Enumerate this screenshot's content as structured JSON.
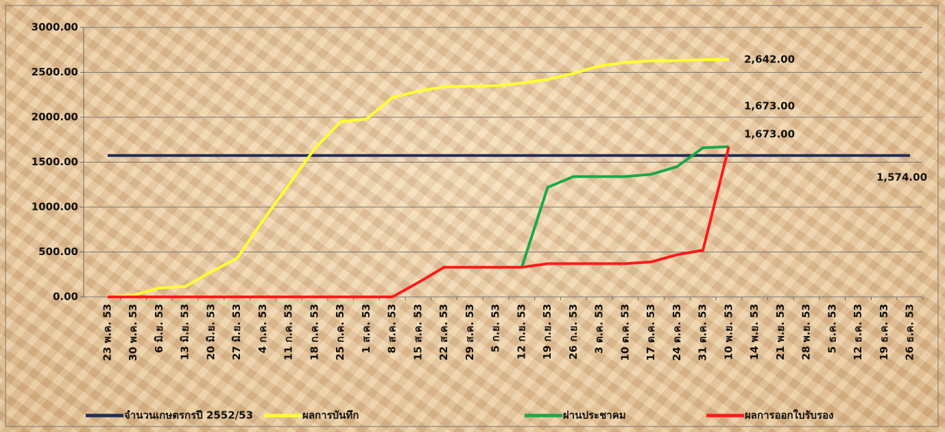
{
  "chart_data": {
    "type": "line",
    "categories": [
      "23 พ.ค. 53",
      "30 พ.ค. 53",
      "6 มิ.ย. 53",
      "13 มิ.ย. 53",
      "20 มิ.ย. 53",
      "27 มิ.ย. 53",
      "4 ก.ค. 53",
      "11 ก.ค. 53",
      "18 ก.ค. 53",
      "25 ก.ค. 53",
      "1 ส.ค. 53",
      "8 ส.ค. 53",
      "15 ส.ค. 53",
      "22 ส.ค. 53",
      "29 ส.ค. 53",
      "5 ก.ย. 53",
      "12 ก.ย. 53",
      "19 ก.ย. 53",
      "26 ก.ย. 53",
      "3 ต.ค. 53",
      "10 ต.ค. 53",
      "17 ต.ค. 53",
      "24 ต.ค. 53",
      "31 ต.ค. 53",
      "10 พ.ย. 53",
      "14 พ.ย. 53",
      "21 พ.ย. 53",
      "28 พ.ย. 53",
      "5 ธ.ค. 53",
      "12 ธ.ค. 53",
      "19 ธ.ค. 53",
      "26 ธ.ค. 53"
    ],
    "series": [
      {
        "name": "จำนวนเกษตรกรปี  2552/53",
        "color": "#1f2d5a",
        "label_color": "#1f2d5a",
        "values": [
          1574,
          1574,
          1574,
          1574,
          1574,
          1574,
          1574,
          1574,
          1574,
          1574,
          1574,
          1574,
          1574,
          1574,
          1574,
          1574,
          1574,
          1574,
          1574,
          1574,
          1574,
          1574,
          1574,
          1574,
          1574,
          1574,
          1574,
          1574,
          1574,
          1574,
          1574,
          1574
        ],
        "value_labels": [
          null,
          null,
          null,
          null,
          null,
          null,
          null,
          null,
          null,
          null,
          null,
          null,
          null,
          null,
          null,
          null,
          null,
          null,
          null,
          null,
          null,
          null,
          null,
          null,
          null,
          null,
          null,
          null,
          null,
          null,
          null,
          "1,574.00"
        ]
      },
      {
        "name": "ผลการบันทึก",
        "color": "#ffff33",
        "label_color": "#222222",
        "values": [
          0,
          20,
          100,
          115,
          280,
          430,
          850,
          1250,
          1650,
          1950,
          1980,
          2220,
          2290,
          2340,
          2345,
          2350,
          2380,
          2420,
          2490,
          2570,
          2610,
          2630,
          2630,
          2640,
          2642,
          null,
          null,
          null,
          null,
          null,
          null,
          null
        ],
        "value_labels": [
          null,
          null,
          null,
          null,
          null,
          null,
          null,
          null,
          null,
          null,
          null,
          null,
          null,
          null,
          null,
          null,
          null,
          null,
          null,
          null,
          null,
          null,
          null,
          null,
          "2,642.00",
          null,
          null,
          null,
          null,
          null,
          null,
          null
        ]
      },
      {
        "name": "ผ่านประชาคม",
        "color": "#1aa84a",
        "label_color": "#1aa84a",
        "values": [
          null,
          null,
          null,
          null,
          null,
          null,
          null,
          null,
          null,
          null,
          null,
          null,
          null,
          null,
          null,
          null,
          330,
          1220,
          1340,
          1340,
          1340,
          1365,
          1450,
          1660,
          1673,
          null,
          null,
          null,
          null,
          null,
          null,
          null
        ],
        "value_labels": [
          null,
          null,
          null,
          null,
          null,
          null,
          null,
          null,
          null,
          null,
          null,
          null,
          null,
          null,
          null,
          null,
          null,
          null,
          null,
          null,
          null,
          null,
          null,
          null,
          "1,673.00",
          null,
          null,
          null,
          null,
          null,
          null,
          null
        ]
      },
      {
        "name": "ผลการออกใบรับรอง",
        "color": "#ff1a1a",
        "label_color": "#ff1a1a",
        "values": [
          0,
          0,
          0,
          0,
          0,
          0,
          0,
          0,
          0,
          0,
          0,
          0,
          160,
          330,
          330,
          330,
          330,
          370,
          370,
          370,
          370,
          390,
          470,
          520,
          1673,
          null,
          null,
          null,
          null,
          null,
          null,
          null
        ],
        "value_labels": [
          null,
          null,
          null,
          null,
          null,
          null,
          null,
          null,
          null,
          null,
          null,
          null,
          null,
          null,
          null,
          null,
          null,
          null,
          null,
          null,
          null,
          null,
          null,
          null,
          "1,673.00",
          null,
          null,
          null,
          null,
          null,
          null,
          null
        ]
      }
    ],
    "ylim": [
      0,
      3000
    ],
    "yticks": [
      {
        "value": 0,
        "label": "0.00"
      },
      {
        "value": 500,
        "label": "500.00"
      },
      {
        "value": 1000,
        "label": "1000.00"
      },
      {
        "value": 1500,
        "label": "1500.00"
      },
      {
        "value": 2000,
        "label": "2000.00"
      },
      {
        "value": 2500,
        "label": "2500.00"
      },
      {
        "value": 3000,
        "label": "3000.00"
      }
    ],
    "grid": true,
    "legend": "bottom"
  }
}
